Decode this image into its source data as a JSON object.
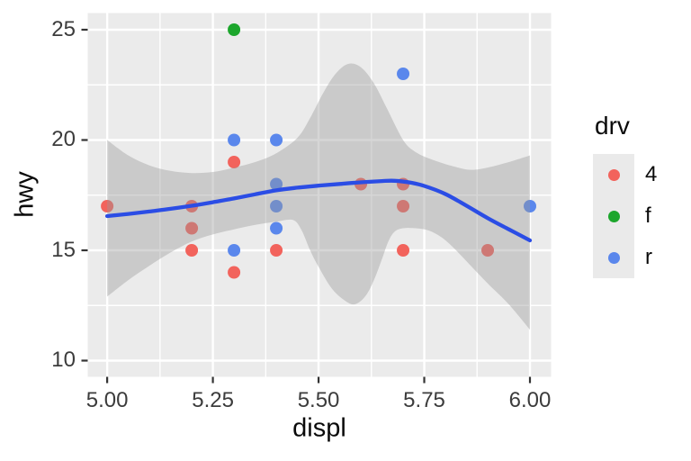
{
  "chart_data": {
    "type": "scatter",
    "title": "",
    "xlabel": "displ",
    "ylabel": "hwy",
    "xlim": [
      4.954,
      6.05
    ],
    "ylim": [
      9.265,
      25.755
    ],
    "grid": true,
    "panel_bg": "#EBEBEB",
    "grid_color": "#FFFFFF",
    "tick_color": "#333333",
    "x_ticks": [
      {
        "value": 5.0,
        "label": "5.00"
      },
      {
        "value": 5.25,
        "label": "5.25"
      },
      {
        "value": 5.5,
        "label": "5.50"
      },
      {
        "value": 5.75,
        "label": "5.75"
      },
      {
        "value": 6.0,
        "label": "6.00"
      }
    ],
    "y_ticks": [
      {
        "value": 10,
        "label": "10"
      },
      {
        "value": 15,
        "label": "15"
      },
      {
        "value": 20,
        "label": "20"
      },
      {
        "value": 25,
        "label": "25"
      }
    ],
    "x_minor": [
      5.125,
      5.375,
      5.625,
      5.875
    ],
    "y_minor": [
      12.5,
      17.5,
      22.5
    ],
    "legend": {
      "title": "drv",
      "position": "right",
      "entries": [
        {
          "label": "4",
          "color": "#F2635C"
        },
        {
          "label": "f",
          "color": "#1CA62C"
        },
        {
          "label": "r",
          "color": "#5A87EC"
        }
      ]
    },
    "point_radius": 7,
    "series": [
      {
        "name": "4",
        "color": "#F2635C",
        "points": [
          [
            5.3,
            19
          ],
          [
            5.6,
            18
          ],
          [
            5.7,
            18
          ],
          [
            5.0,
            17
          ],
          [
            5.2,
            17
          ],
          [
            5.7,
            17
          ],
          [
            5.2,
            16
          ],
          [
            5.2,
            15
          ],
          [
            5.4,
            15
          ],
          [
            5.7,
            15
          ],
          [
            5.9,
            15
          ],
          [
            5.3,
            14
          ]
        ]
      },
      {
        "name": "f",
        "color": "#1CA62C",
        "points": [
          [
            5.3,
            25
          ]
        ]
      },
      {
        "name": "r",
        "color": "#5A87EC",
        "points": [
          [
            5.7,
            23
          ],
          [
            5.3,
            20
          ],
          [
            5.4,
            20
          ],
          [
            5.4,
            18
          ],
          [
            5.4,
            17
          ],
          [
            6.0,
            17
          ],
          [
            5.4,
            16
          ],
          [
            5.3,
            15
          ]
        ]
      }
    ],
    "smooth_line": {
      "color": "#2B4DE5",
      "width": 4.3,
      "points": [
        [
          5.0,
          16.55
        ],
        [
          5.05,
          16.65
        ],
        [
          5.1,
          16.76
        ],
        [
          5.15,
          16.88
        ],
        [
          5.2,
          17.02
        ],
        [
          5.25,
          17.18
        ],
        [
          5.3,
          17.35
        ],
        [
          5.35,
          17.54
        ],
        [
          5.4,
          17.72
        ],
        [
          5.45,
          17.84
        ],
        [
          5.5,
          17.93
        ],
        [
          5.55,
          18.01
        ],
        [
          5.6,
          18.08
        ],
        [
          5.65,
          18.14
        ],
        [
          5.68,
          18.15
        ],
        [
          5.72,
          18.06
        ],
        [
          5.75,
          17.92
        ],
        [
          5.8,
          17.55
        ],
        [
          5.85,
          17.02
        ],
        [
          5.9,
          16.46
        ],
        [
          5.95,
          15.95
        ],
        [
          6.0,
          15.45
        ]
      ]
    },
    "ribbon": {
      "color": "#999999",
      "opacity": 0.4,
      "upper": [
        [
          5.0,
          20.0
        ],
        [
          5.05,
          19.3
        ],
        [
          5.1,
          18.85
        ],
        [
          5.15,
          18.6
        ],
        [
          5.2,
          18.5
        ],
        [
          5.25,
          18.55
        ],
        [
          5.3,
          18.75
        ],
        [
          5.35,
          19.0
        ],
        [
          5.4,
          19.4
        ],
        [
          5.45,
          20.1
        ],
        [
          5.48,
          21.0
        ],
        [
          5.51,
          22.1
        ],
        [
          5.54,
          23.0
        ],
        [
          5.57,
          23.45
        ],
        [
          5.6,
          23.3
        ],
        [
          5.63,
          22.6
        ],
        [
          5.66,
          21.5
        ],
        [
          5.7,
          20.0
        ],
        [
          5.73,
          19.45
        ],
        [
          5.77,
          19.1
        ],
        [
          5.82,
          18.8
        ],
        [
          5.86,
          18.65
        ],
        [
          5.9,
          18.75
        ],
        [
          5.95,
          19.0
        ],
        [
          6.0,
          19.3
        ]
      ],
      "lower": [
        [
          5.0,
          12.9
        ],
        [
          5.05,
          13.65
        ],
        [
          5.1,
          14.3
        ],
        [
          5.15,
          14.9
        ],
        [
          5.2,
          15.4
        ],
        [
          5.25,
          15.72
        ],
        [
          5.3,
          15.95
        ],
        [
          5.35,
          16.15
        ],
        [
          5.4,
          16.3
        ],
        [
          5.44,
          16.37
        ],
        [
          5.46,
          15.9
        ],
        [
          5.48,
          15.0
        ],
        [
          5.5,
          14.25
        ],
        [
          5.53,
          13.3
        ],
        [
          5.56,
          12.75
        ],
        [
          5.585,
          12.55
        ],
        [
          5.61,
          12.9
        ],
        [
          5.63,
          13.6
        ],
        [
          5.65,
          14.6
        ],
        [
          5.665,
          15.4
        ],
        [
          5.68,
          15.85
        ],
        [
          5.7,
          16.0
        ],
        [
          5.73,
          16.0
        ],
        [
          5.76,
          15.9
        ],
        [
          5.79,
          15.6
        ],
        [
          5.82,
          15.1
        ],
        [
          5.86,
          14.3
        ],
        [
          5.9,
          13.5
        ],
        [
          5.95,
          12.55
        ],
        [
          6.0,
          11.4
        ]
      ]
    }
  }
}
